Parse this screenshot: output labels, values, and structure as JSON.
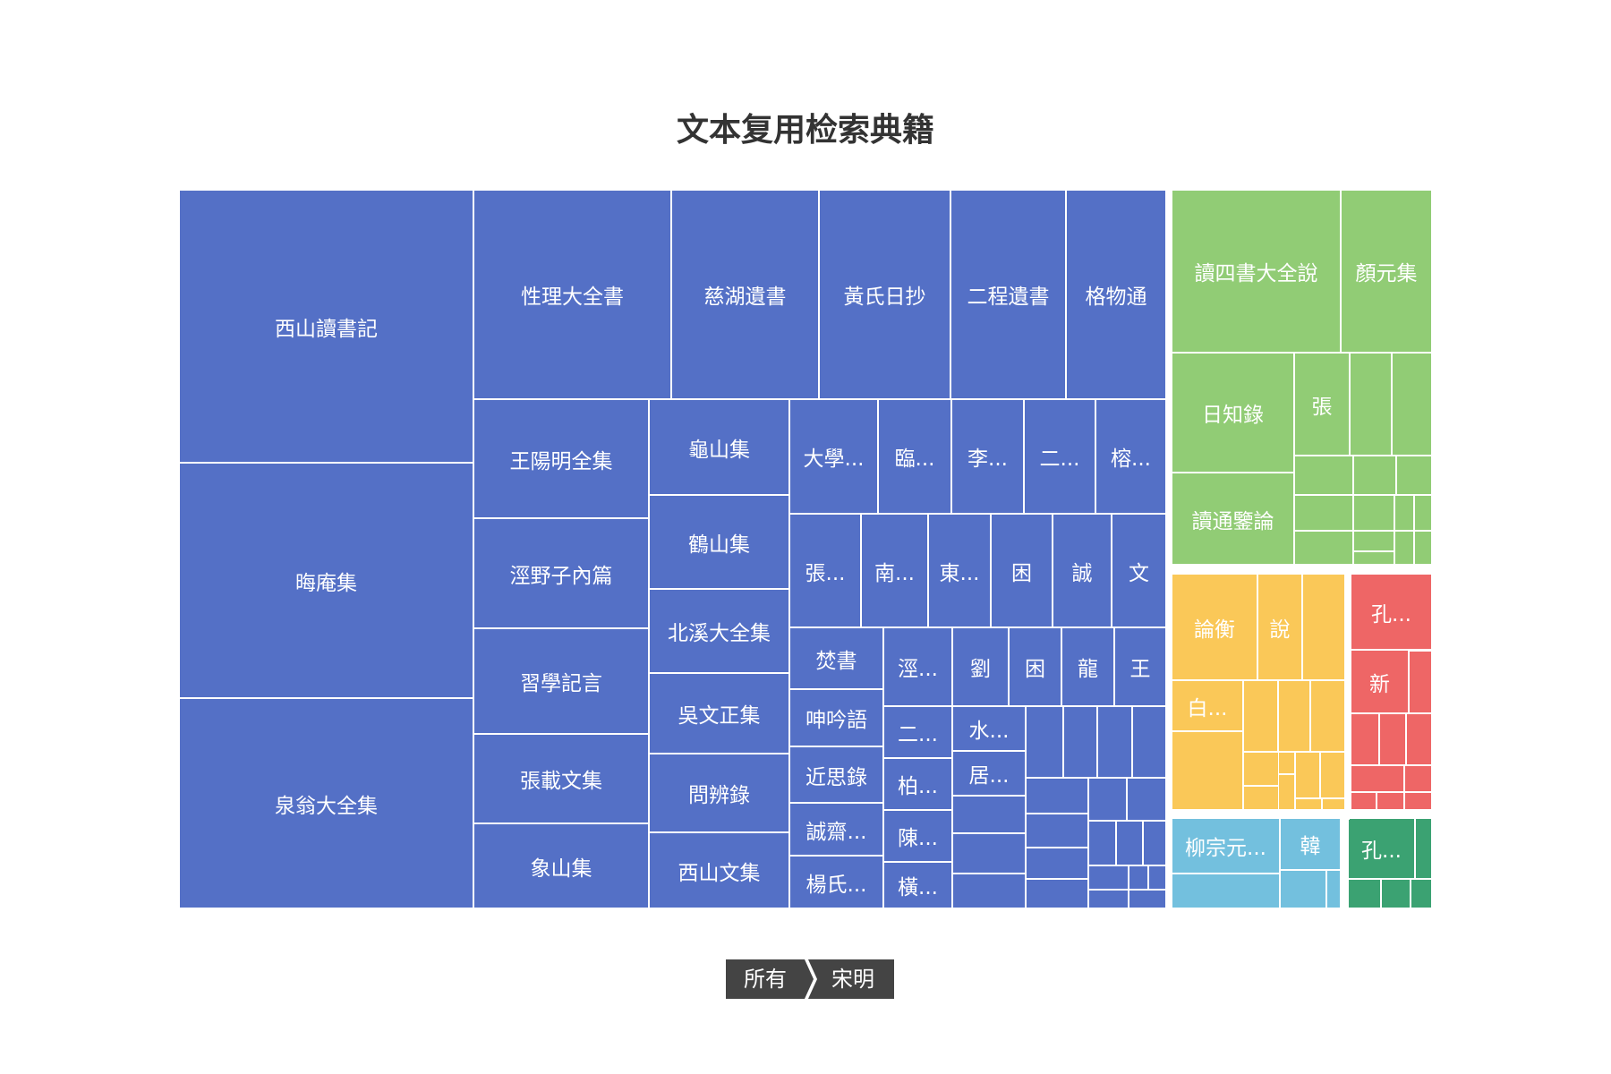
{
  "title": "文本复用检索典籍",
  "breadcrumb": [
    "所有",
    "宋明"
  ],
  "colors": {
    "blue": "#5470c6",
    "green": "#91cc75",
    "yellow": "#fac858",
    "red": "#ee6666",
    "cyan": "#73c0de",
    "teal": "#3ba272"
  },
  "chart_data": {
    "type": "treemap",
    "title": "文本复用检索典籍",
    "groups": [
      {
        "color": "blue",
        "items": [
          {
            "label": "西山讀書記"
          },
          {
            "label": "晦庵集"
          },
          {
            "label": "泉翁大全集"
          },
          {
            "label": "性理大全書"
          },
          {
            "label": "慈湖遺書"
          },
          {
            "label": "黃氏日抄"
          },
          {
            "label": "二程遺書"
          },
          {
            "label": "格物通"
          },
          {
            "label": "王陽明全集"
          },
          {
            "label": "涇野子內篇"
          },
          {
            "label": "習學記言"
          },
          {
            "label": "張載文集"
          },
          {
            "label": "象山集"
          },
          {
            "label": "龜山集"
          },
          {
            "label": "鶴山集"
          },
          {
            "label": "北溪大全集"
          },
          {
            "label": "吳文正集"
          },
          {
            "label": "問辨錄"
          },
          {
            "label": "西山文集"
          },
          {
            "label": "大學..."
          },
          {
            "label": "臨..."
          },
          {
            "label": "李..."
          },
          {
            "label": "二..."
          },
          {
            "label": "榕..."
          },
          {
            "label": "張..."
          },
          {
            "label": "南..."
          },
          {
            "label": "東..."
          },
          {
            "label": "困"
          },
          {
            "label": "誠"
          },
          {
            "label": "文"
          },
          {
            "label": "焚書"
          },
          {
            "label": "呻吟語"
          },
          {
            "label": "近思錄"
          },
          {
            "label": "誠齋..."
          },
          {
            "label": "楊氏..."
          },
          {
            "label": "涇..."
          },
          {
            "label": "劉"
          },
          {
            "label": "困"
          },
          {
            "label": "龍"
          },
          {
            "label": "王"
          },
          {
            "label": "二..."
          },
          {
            "label": "柏..."
          },
          {
            "label": "陳..."
          },
          {
            "label": "橫..."
          },
          {
            "label": "水..."
          },
          {
            "label": "居..."
          },
          {
            "label": ""
          },
          {
            "label": ""
          },
          {
            "label": ""
          },
          {
            "label": ""
          },
          {
            "label": ""
          },
          {
            "label": ""
          },
          {
            "label": ""
          },
          {
            "label": ""
          },
          {
            "label": ""
          },
          {
            "label": ""
          },
          {
            "label": ""
          },
          {
            "label": ""
          },
          {
            "label": ""
          },
          {
            "label": ""
          },
          {
            "label": ""
          },
          {
            "label": ""
          },
          {
            "label": ""
          },
          {
            "label": ""
          },
          {
            "label": ""
          },
          {
            "label": ""
          },
          {
            "label": ""
          },
          {
            "label": ""
          },
          {
            "label": ""
          }
        ]
      },
      {
        "color": "green",
        "items": [
          {
            "label": "讀四書大全說"
          },
          {
            "label": "顏元集"
          },
          {
            "label": "日知錄"
          },
          {
            "label": "張"
          },
          {
            "label": "讀通鑒論"
          },
          {
            "label": ""
          },
          {
            "label": ""
          },
          {
            "label": ""
          },
          {
            "label": ""
          },
          {
            "label": ""
          },
          {
            "label": ""
          },
          {
            "label": ""
          },
          {
            "label": ""
          },
          {
            "label": ""
          },
          {
            "label": ""
          },
          {
            "label": ""
          },
          {
            "label": ""
          },
          {
            "label": ""
          },
          {
            "label": ""
          }
        ]
      },
      {
        "color": "yellow",
        "items": [
          {
            "label": "論衡"
          },
          {
            "label": "說"
          },
          {
            "label": "白..."
          },
          {
            "label": ""
          },
          {
            "label": ""
          },
          {
            "label": ""
          },
          {
            "label": ""
          },
          {
            "label": ""
          },
          {
            "label": ""
          },
          {
            "label": ""
          },
          {
            "label": ""
          },
          {
            "label": ""
          },
          {
            "label": ""
          },
          {
            "label": ""
          },
          {
            "label": ""
          },
          {
            "label": ""
          }
        ]
      },
      {
        "color": "red",
        "items": [
          {
            "label": "孔..."
          },
          {
            "label": "新"
          },
          {
            "label": ""
          },
          {
            "label": ""
          },
          {
            "label": ""
          },
          {
            "label": ""
          },
          {
            "label": ""
          },
          {
            "label": ""
          },
          {
            "label": ""
          },
          {
            "label": ""
          },
          {
            "label": ""
          },
          {
            "label": ""
          }
        ]
      },
      {
        "color": "cyan",
        "items": [
          {
            "label": "柳宗元..."
          },
          {
            "label": "韓"
          },
          {
            "label": ""
          },
          {
            "label": ""
          },
          {
            "label": ""
          }
        ]
      },
      {
        "color": "teal",
        "items": [
          {
            "label": "孔..."
          },
          {
            "label": ""
          },
          {
            "label": ""
          },
          {
            "label": ""
          },
          {
            "label": ""
          },
          {
            "label": ""
          }
        ]
      }
    ]
  }
}
